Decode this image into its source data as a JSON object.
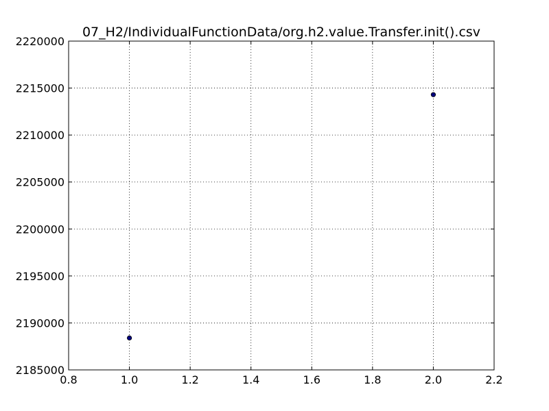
{
  "chart_data": {
    "type": "scatter",
    "title": "07_H2/IndividualFunctionData/org.h2.value.Transfer.init().csv",
    "xlabel": "",
    "ylabel": "",
    "xlim": [
      0.8,
      2.2
    ],
    "ylim": [
      2185000,
      2220000
    ],
    "x_ticks": [
      0.8,
      1.0,
      1.2,
      1.4,
      1.6,
      1.8,
      2.0,
      2.2
    ],
    "x_tick_labels": [
      "0.8",
      "1.0",
      "1.2",
      "1.4",
      "1.6",
      "1.8",
      "2.0",
      "2.2"
    ],
    "y_ticks": [
      2185000,
      2190000,
      2195000,
      2200000,
      2205000,
      2210000,
      2215000,
      2220000
    ],
    "y_tick_labels": [
      "2185000",
      "2190000",
      "2195000",
      "2200000",
      "2205000",
      "2210000",
      "2215000",
      "2220000"
    ],
    "grid": true,
    "marker_color": "#00007f",
    "series": [
      {
        "x": [
          1.0,
          2.0
        ],
        "y": [
          2188400,
          2214300
        ]
      }
    ]
  }
}
